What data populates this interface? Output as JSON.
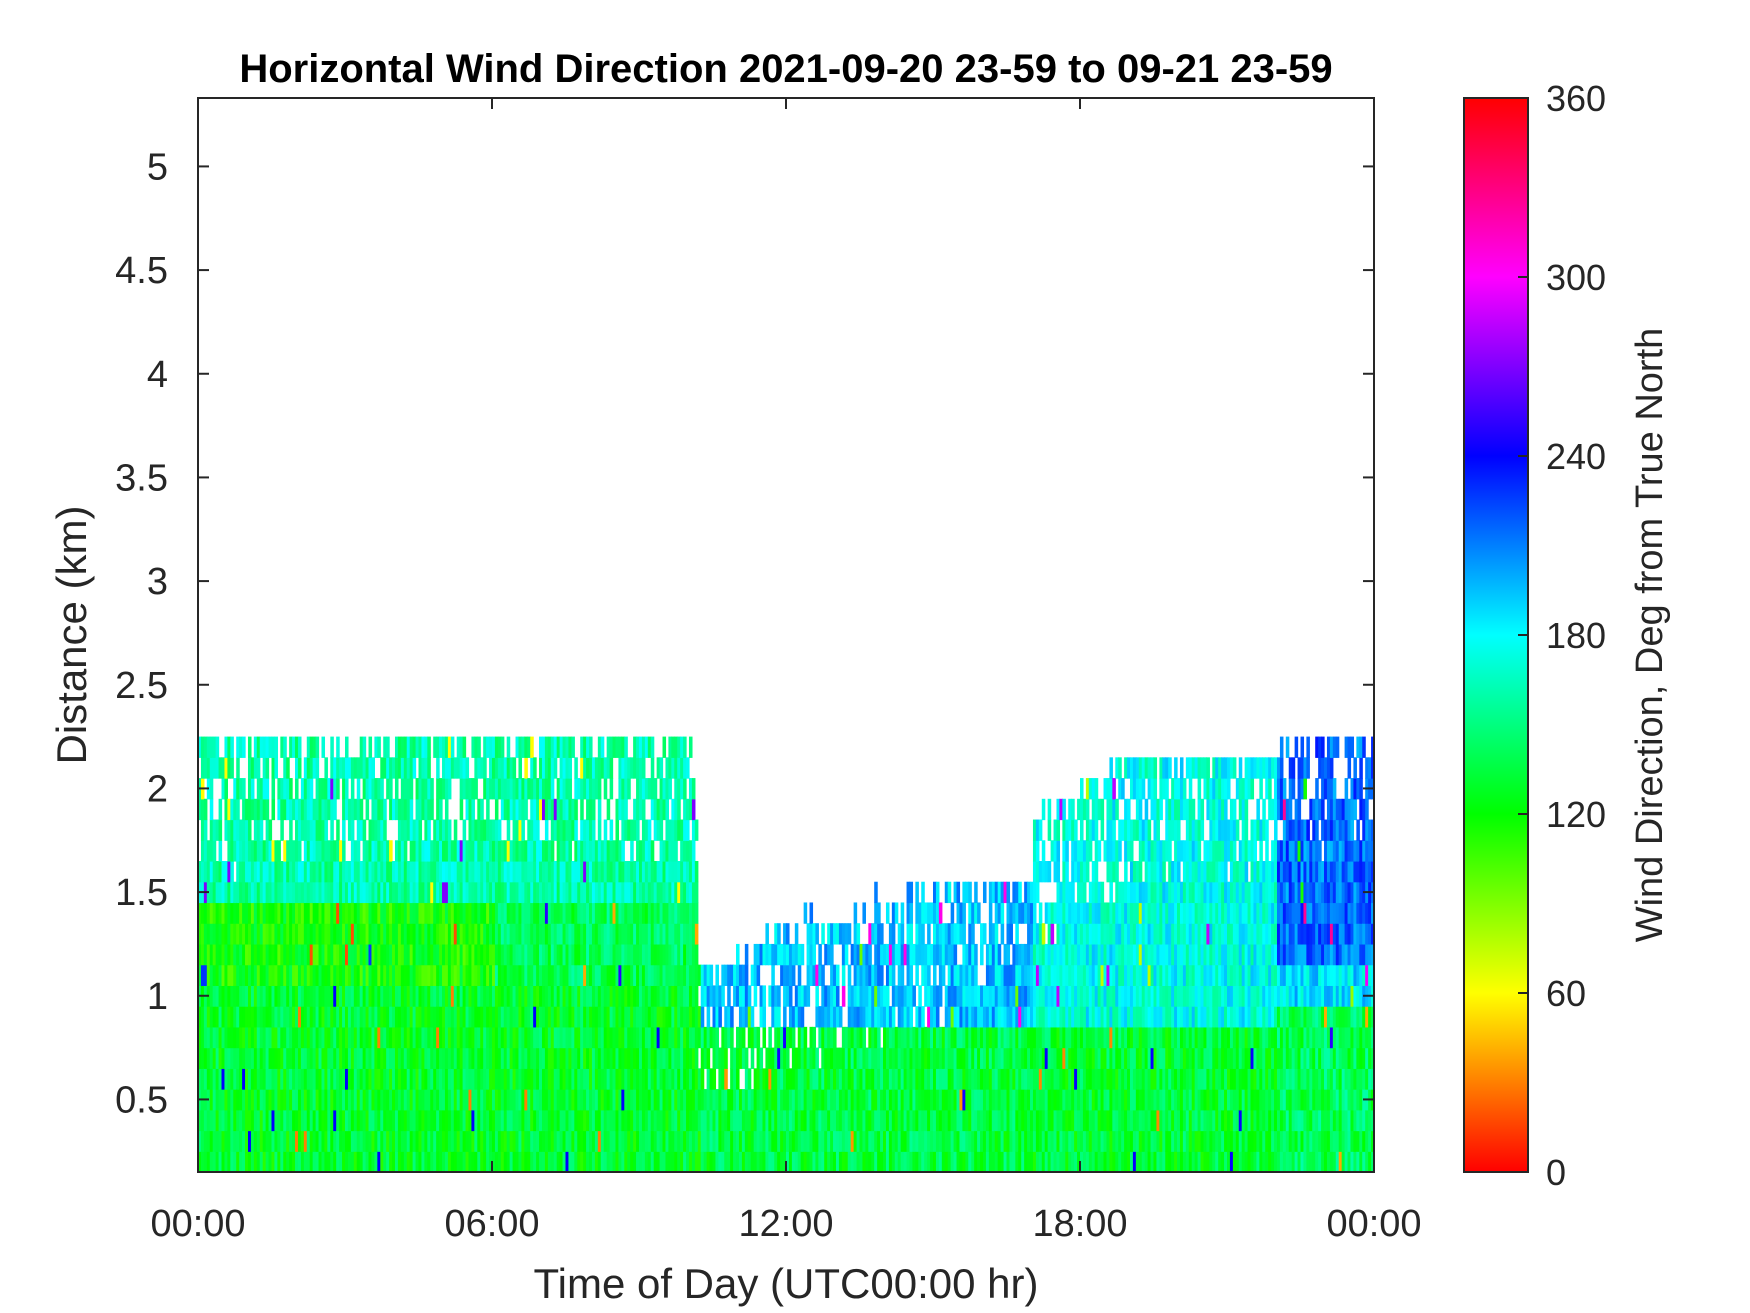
{
  "chart_data": {
    "type": "heatmap",
    "title": "Horizontal Wind Direction 2021-09-20 23-59 to 09-21 23-59",
    "xlabel": "Time of Day (UTC00:00 hr)",
    "ylabel": "Distance (km)",
    "colorbar_label": "Wind Direction, Deg from True North",
    "x_ticks": [
      "00:00",
      "06:00",
      "12:00",
      "18:00",
      "00:00"
    ],
    "x_tick_hours": [
      0,
      6,
      12,
      18,
      24
    ],
    "xlim_hours": [
      0,
      24
    ],
    "y_ticks": [
      "0.5",
      "1",
      "1.5",
      "2",
      "2.5",
      "3",
      "3.5",
      "4",
      "4.5",
      "5"
    ],
    "y_tick_values": [
      0.5,
      1,
      1.5,
      2,
      2.5,
      3,
      3.5,
      4,
      4.5,
      5
    ],
    "ylim": [
      0.15,
      5.33
    ],
    "colorbar_ticks": [
      "0",
      "60",
      "120",
      "180",
      "240",
      "300",
      "360"
    ],
    "colorbar_tick_values": [
      0,
      60,
      120,
      180,
      240,
      300,
      360
    ],
    "clim": [
      0,
      360
    ],
    "colormap": [
      "#ff0000",
      "#ffff00",
      "#00ff00",
      "#00ffff",
      "#0000ff",
      "#ff00ff",
      "#ff0000"
    ],
    "grid": false,
    "profile_top_km": [
      {
        "hour": 0.0,
        "top": 2.2
      },
      {
        "hour": 1.5,
        "top": 2.2
      },
      {
        "hour": 3.5,
        "top": 2.2
      },
      {
        "hour": 5.3,
        "top": 2.3
      },
      {
        "hour": 7.8,
        "top": 2.3
      },
      {
        "hour": 10.1,
        "top": 2.2
      },
      {
        "hour": 10.2,
        "top": 1.1
      },
      {
        "hour": 11.0,
        "top": 1.1
      },
      {
        "hour": 11.3,
        "top": 1.2
      },
      {
        "hour": 12.5,
        "top": 1.3
      },
      {
        "hour": 14.0,
        "top": 1.4
      },
      {
        "hour": 15.5,
        "top": 1.55
      },
      {
        "hour": 16.5,
        "top": 1.7
      },
      {
        "hour": 17.5,
        "top": 1.9
      },
      {
        "hour": 19.0,
        "top": 2.1
      },
      {
        "hour": 20.5,
        "top": 2.2
      },
      {
        "hour": 21.5,
        "top": 2.2
      },
      {
        "hour": 22.0,
        "top": 2.3
      },
      {
        "hour": 24.0,
        "top": 2.3
      }
    ],
    "layers": [
      {
        "hours": [
          0,
          10.2
        ],
        "km": [
          0.15,
          1.0
        ],
        "dir": 130
      },
      {
        "hours": [
          0,
          6.0
        ],
        "km": [
          1.0,
          1.65
        ],
        "dir": 118
      },
      {
        "hours": [
          6.0,
          10.2
        ],
        "km": [
          1.0,
          1.5
        ],
        "dir": 140
      },
      {
        "hours": [
          0,
          10.2
        ],
        "km": [
          1.5,
          2.3
        ],
        "dir": 160
      },
      {
        "hours": [
          10.2,
          17.0
        ],
        "km": [
          0.15,
          0.8
        ],
        "dir": 135
      },
      {
        "hours": [
          10.2,
          17.0
        ],
        "km": [
          0.8,
          1.6
        ],
        "dir": 195
      },
      {
        "hours": [
          17.0,
          22.0
        ],
        "km": [
          0.15,
          0.8
        ],
        "dir": 132
      },
      {
        "hours": [
          17.0,
          22.0
        ],
        "km": [
          0.8,
          2.2
        ],
        "dir": 175
      },
      {
        "hours": [
          22.0,
          24.0
        ],
        "km": [
          0.15,
          0.9
        ],
        "dir": 140
      },
      {
        "hours": [
          22.0,
          24.0
        ],
        "km": [
          0.9,
          1.1
        ],
        "dir": 185
      },
      {
        "hours": [
          22.0,
          24.0
        ],
        "km": [
          1.1,
          2.3
        ],
        "dir": 215
      }
    ]
  }
}
